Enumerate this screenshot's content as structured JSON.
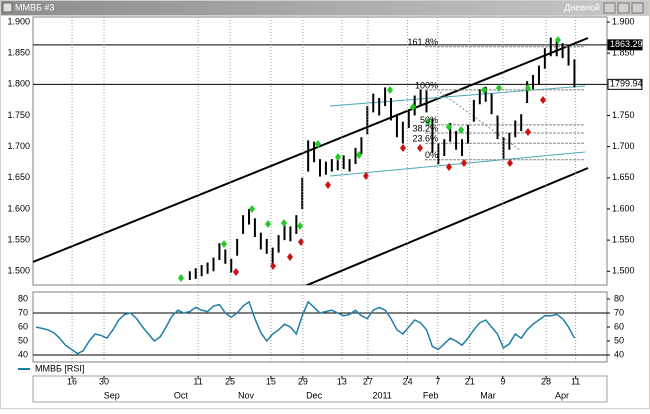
{
  "window": {
    "title": "ММВБ #3",
    "timeframe": "Дневной"
  },
  "chart_data": {
    "type": "ohlc",
    "color": "#000000",
    "grid": true,
    "xlim": [
      0,
      97
    ],
    "ylim": [
      1478,
      1908
    ],
    "yticks": [
      {
        "value": 1500,
        "label": "1.500"
      },
      {
        "value": 1550,
        "label": "1.550"
      },
      {
        "value": 1600,
        "label": "1.600"
      },
      {
        "value": 1650,
        "label": "1.650"
      },
      {
        "value": 1700,
        "label": "1.700"
      },
      {
        "value": 1750,
        "label": "1.750"
      },
      {
        "value": 1800,
        "label": "1.800"
      },
      {
        "value": 1850,
        "label": "1.850"
      },
      {
        "value": 1900,
        "label": "1.900"
      }
    ],
    "xticks": [
      {
        "value": 6.6,
        "label": "16"
      },
      {
        "value": 12,
        "label": "30"
      },
      {
        "value": 27.9,
        "label": "11"
      },
      {
        "value": 33.3,
        "label": "25"
      },
      {
        "value": 40.2,
        "label": "15"
      },
      {
        "value": 45.6,
        "label": "29"
      },
      {
        "value": 52.2,
        "label": "13"
      },
      {
        "value": 56.6,
        "label": "27"
      },
      {
        "value": 63.3,
        "label": "24"
      },
      {
        "value": 68.4,
        "label": "7"
      },
      {
        "value": 73.8,
        "label": "21"
      },
      {
        "value": 79.4,
        "label": "9"
      },
      {
        "value": 86.7,
        "label": "28"
      },
      {
        "value": 91.7,
        "label": "11"
      }
    ],
    "months": [
      {
        "value": 13.3,
        "label": "Sep"
      },
      {
        "value": 25,
        "label": "Oct"
      },
      {
        "value": 36,
        "label": "Nov"
      },
      {
        "value": 47.5,
        "label": "Dec"
      },
      {
        "value": 59,
        "label": "2011"
      },
      {
        "value": 67.2,
        "label": "Feb"
      },
      {
        "value": 76.9,
        "label": "Mar"
      },
      {
        "value": 89.4,
        "label": "Apr"
      }
    ],
    "high": [
      null,
      null,
      null,
      null,
      null,
      null,
      null,
      null,
      null,
      null,
      null,
      null,
      null,
      null,
      null,
      null,
      null,
      null,
      null,
      null,
      null,
      null,
      null,
      null,
      null,
      null,
      1500,
      1505,
      1510,
      1514,
      1522,
      1545,
      1535,
      1520,
      1552,
      1590,
      1600,
      1585,
      1562,
      1552,
      1538,
      1558,
      1578,
      1572,
      1590,
      1650,
      1710,
      1708,
      1680,
      1676,
      1680,
      1684,
      1686,
      1680,
      1698,
      1715,
      1765,
      1785,
      1778,
      1795,
      1778,
      1752,
      1740,
      1760,
      1782,
      1792,
      1790,
      1745,
      1705,
      1712,
      1738,
      1725,
      1712,
      1735,
      1775,
      1792,
      1796,
      1785,
      1750,
      1715,
      1722,
      1742,
      1752,
      1805,
      1815,
      1830,
      1858,
      1875,
      1870,
      1866,
      1860,
      1840
    ],
    "low": [
      null,
      null,
      null,
      null,
      null,
      null,
      null,
      null,
      null,
      null,
      null,
      null,
      null,
      null,
      null,
      null,
      null,
      null,
      null,
      null,
      null,
      null,
      null,
      null,
      null,
      null,
      1486,
      1488,
      1492,
      1496,
      1500,
      1518,
      1512,
      1498,
      1525,
      1560,
      1575,
      1555,
      1535,
      1528,
      1512,
      1530,
      1550,
      1548,
      1560,
      1600,
      1660,
      1675,
      1652,
      1655,
      1660,
      1662,
      1664,
      1660,
      1672,
      1688,
      1720,
      1755,
      1750,
      1765,
      1742,
      1715,
      1705,
      1730,
      1750,
      1765,
      1755,
      1690,
      1672,
      1685,
      1708,
      1695,
      1685,
      1705,
      1740,
      1768,
      1772,
      1752,
      1712,
      1680,
      1695,
      1715,
      1725,
      1770,
      1792,
      1800,
      1825,
      1845,
      1845,
      1842,
      1830,
      1795
    ],
    "hlines": [
      {
        "value": 1863.29,
        "label": "1863.29"
      },
      {
        "value": 1799.94,
        "label": "1799.94"
      }
    ],
    "fib": {
      "low": 1679,
      "high": 1791,
      "levels": [
        {
          "value": 161.8,
          "label": "161.8%"
        },
        {
          "value": 100,
          "label": "100%"
        },
        {
          "value": 50,
          "label": "50%"
        },
        {
          "value": 38.2,
          "label": "38.2%"
        },
        {
          "value": 23.6,
          "label": "23.6%"
        },
        {
          "value": 0,
          "label": "0%"
        }
      ]
    },
    "rsi": {
      "name": "ММВБ [RSI]",
      "color": "#1f7ea8",
      "ylim": [
        35,
        85
      ],
      "yticks": [
        80,
        70,
        60,
        50,
        40
      ],
      "levels": [
        70,
        40
      ],
      "values": [
        60,
        59,
        58,
        56,
        52,
        47,
        44,
        41,
        43,
        50,
        55,
        54,
        52,
        58,
        65,
        69,
        70,
        66,
        60,
        55,
        50,
        53,
        60,
        68,
        72,
        70,
        71,
        74,
        72,
        71,
        75,
        76,
        70,
        67,
        70,
        75,
        78,
        66,
        56,
        50,
        55,
        58,
        62,
        60,
        55,
        68,
        78,
        74,
        70,
        71,
        72,
        70,
        68,
        69,
        72,
        68,
        66,
        72,
        74,
        72,
        66,
        58,
        55,
        60,
        65,
        63,
        58,
        46,
        44,
        48,
        52,
        50,
        47,
        52,
        58,
        63,
        65,
        60,
        55,
        45,
        48,
        55,
        52,
        58,
        62,
        65,
        68,
        68,
        69,
        66,
        60,
        52
      ]
    }
  }
}
